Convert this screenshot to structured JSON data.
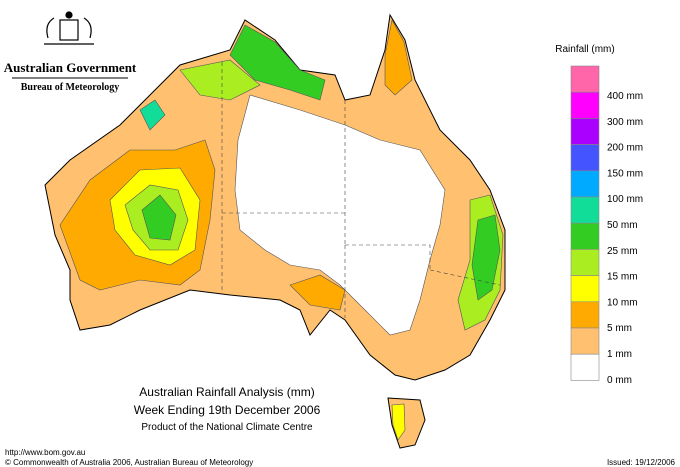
{
  "header": {
    "agency": "Australian Government",
    "bureau": "Bureau of Meteorology"
  },
  "map": {
    "title": "Australian Rainfall Analysis (mm)",
    "subtitle": "Week Ending 19th December 2006",
    "credit": "Product of the National Climate Centre"
  },
  "legend": {
    "title": "Rainfall (mm)",
    "colors": [
      "#ff66aa",
      "#ff00ff",
      "#aa00ff",
      "#4455ff",
      "#00aaff",
      "#11dd99",
      "#33cc22",
      "#aaee22",
      "#ffff00",
      "#ffaa00",
      "#ffc070",
      "#ffffff"
    ],
    "labels": [
      "400 mm",
      "300 mm",
      "200 mm",
      "150 mm",
      "100 mm",
      "50 mm",
      "25 mm",
      "15 mm",
      "10 mm",
      "5 mm",
      "1 mm",
      "0 mm"
    ]
  },
  "footer": {
    "url": "http://www.bom.gov.au",
    "copyright": "© Commonwealth of Australia 2006, Australian Bureau of Meteorology",
    "issued": "Issued: 19/12/2006"
  }
}
